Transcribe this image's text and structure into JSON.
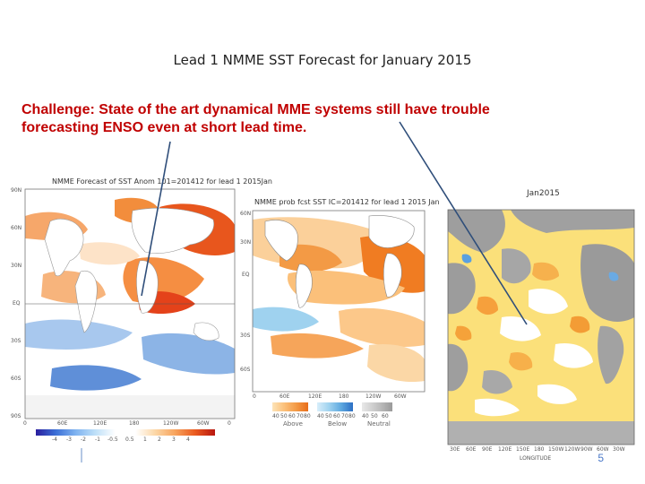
{
  "slide": {
    "title": "Lead 1 NMME SST Forecast for January 2015",
    "challenge_line1": "Challenge: State of the art dynamical MME systems still have trouble",
    "challenge_line2": "forecasting ENSO even at short lead time.",
    "page_number": "5"
  },
  "panel1": {
    "title": "NMME Forecast of SST Anom 101=201412 for lead 1 2015Jan",
    "lat_labels": [
      "90N",
      "60N",
      "30N",
      "EQ",
      "30S",
      "60S",
      "90S"
    ],
    "lon_labels": [
      "0",
      "60E",
      "120E",
      "180",
      "120W",
      "60W",
      "0"
    ],
    "legend_labels": [
      "-4",
      "-3",
      "-2",
      "-1",
      "-0.5",
      "0.5",
      "1",
      "2",
      "3",
      "4"
    ]
  },
  "panel2": {
    "title": "NMME prob fcst SST IC=201412 for lead 1 2015 Jan",
    "lat_labels": [
      "60N",
      "30N",
      "EQ",
      "30S",
      "60S"
    ],
    "lon_labels": [
      "0",
      "60E",
      "120E",
      "180",
      "120W",
      "60W"
    ],
    "legend_groups": [
      "Above",
      "Below",
      "Neutral"
    ],
    "legend_ticks": [
      "40",
      "50",
      "60",
      "70",
      "80",
      "40",
      "50",
      "60",
      "70",
      "80",
      "40",
      "50",
      "60"
    ]
  },
  "panel3": {
    "title": "Jan2015",
    "lon_labels": [
      "30E",
      "60E",
      "90E",
      "120E",
      "150E",
      "180",
      "150W",
      "120W",
      "90W",
      "60W",
      "30W"
    ],
    "xlabel": "LONGITUDE"
  },
  "colors": {
    "title_text": "#222222",
    "challenge_text": "#c00000",
    "arrow": "#2f4e7a",
    "page_number": "#4a78c8"
  }
}
